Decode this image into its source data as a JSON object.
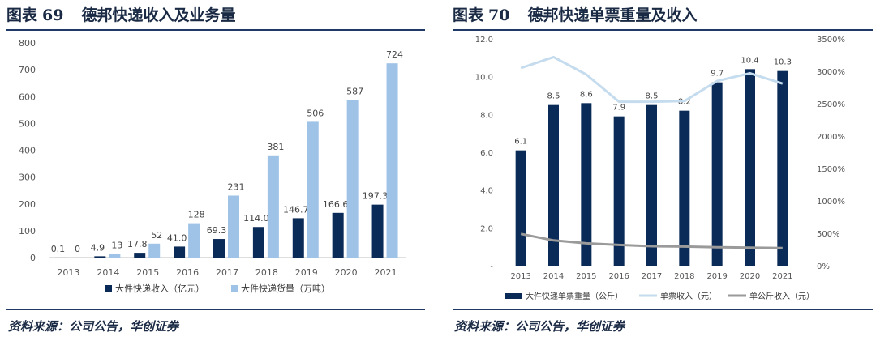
{
  "chart_data": [
    {
      "type": "bar",
      "title_prefix": "图表",
      "title_number": "69",
      "title": "德邦快递收入及业务量",
      "categories": [
        "2013",
        "2014",
        "2015",
        "2016",
        "2017",
        "2018",
        "2019",
        "2020",
        "2021"
      ],
      "series": [
        {
          "name": "大件快递收入（亿元）",
          "color": "#0a2a57",
          "values": [
            0.1,
            4.9,
            17.8,
            41.0,
            69.3,
            114.0,
            146.7,
            166.6,
            197.3
          ],
          "labels": [
            "0.1",
            "4.9",
            "17.8",
            "41.0",
            "69.3",
            "114.0",
            "146.7",
            "166.6",
            "197.3"
          ]
        },
        {
          "name": "大件快递货量（万吨）",
          "color": "#9fc3e7",
          "values": [
            0,
            13,
            52,
            128,
            231,
            381,
            506,
            587,
            724
          ],
          "labels": [
            "0",
            "13",
            "52",
            "128",
            "231",
            "381",
            "506",
            "587",
            "724"
          ]
        }
      ],
      "ylim": [
        0,
        800
      ],
      "yticks": [
        "0",
        "100",
        "200",
        "300",
        "400",
        "500",
        "600",
        "700",
        "800"
      ],
      "legend_position": "bottom",
      "source": "资料来源：公司公告，华创证券"
    },
    {
      "type": "bar-line",
      "title_prefix": "图表",
      "title_number": "70",
      "title": "德邦快递单票重量及收入",
      "categories": [
        "2013",
        "2014",
        "2015",
        "2016",
        "2017",
        "2018",
        "2019",
        "2020",
        "2021"
      ],
      "bars": {
        "name": "大件快递单票重量（公斤）",
        "color": "#0a2a57",
        "values": [
          6.1,
          8.5,
          8.6,
          7.9,
          8.5,
          8.2,
          9.7,
          10.4,
          10.3
        ],
        "labels": [
          "6.1",
          "8.5",
          "8.6",
          "7.9",
          "8.5",
          "8.2",
          "9.7",
          "10.4",
          "10.3"
        ]
      },
      "lines": [
        {
          "name": "单票收入（元）",
          "color": "#c5dcee",
          "values": [
            3050,
            3220,
            2950,
            2530,
            2530,
            2540,
            2850,
            2970,
            2810
          ]
        },
        {
          "name": "单公斤收入（元）",
          "color": "#9a9a9a",
          "values": [
            490,
            390,
            345,
            320,
            300,
            295,
            285,
            278,
            272
          ]
        }
      ],
      "ylim_left": [
        0,
        12
      ],
      "yticks_left": [
        "-",
        "2.0",
        "4.0",
        "6.0",
        "8.0",
        "10.0",
        "12.0"
      ],
      "ylim_right": [
        0,
        3500
      ],
      "yticks_right": [
        "0%",
        "500%",
        "1000%",
        "1500%",
        "2000%",
        "2500%",
        "3000%",
        "3500%"
      ],
      "legend_position": "bottom",
      "source": "资料来源：公司公告，华创证券"
    }
  ]
}
